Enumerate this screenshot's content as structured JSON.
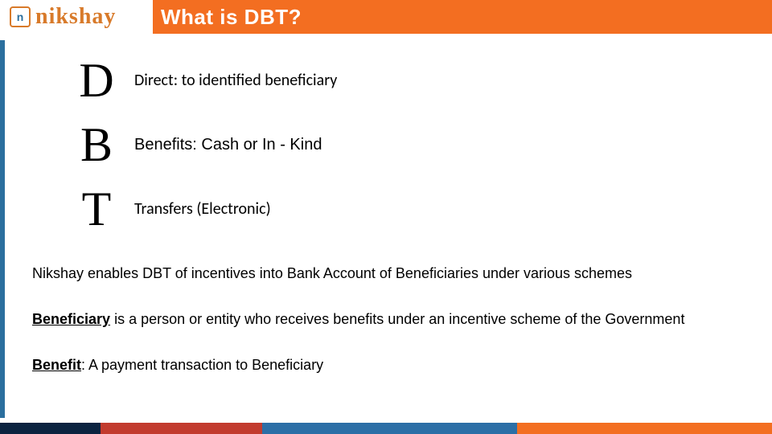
{
  "colors": {
    "header_bg": "#f36e21",
    "left_accent": "#2b6f9e",
    "logo_text": "#d87a2a",
    "text": "#000000"
  },
  "logo": {
    "icon_letter": "n",
    "text": "nikshay"
  },
  "header": {
    "title": "What is DBT?"
  },
  "acronym": [
    {
      "letter": "D",
      "desc": "Direct: to identified beneficiary"
    },
    {
      "letter": "B",
      "desc": "Benefits: Cash or In - Kind"
    },
    {
      "letter": "T",
      "desc": "Transfers (Electronic)"
    }
  ],
  "paragraphs": {
    "p1": "Nikshay enables DBT of incentives into Bank Account of Beneficiaries under various schemes",
    "p2_bold": "Beneficiary",
    "p2_rest": " is a person or entity who receives benefits under an incentive scheme of the Government",
    "p3_bold": "Benefit",
    "p3_rest": ": A payment transaction to Beneficiary"
  },
  "footer": {
    "segments": [
      {
        "color": "#0b2340",
        "width_pct": 13
      },
      {
        "color": "#c23b2e",
        "width_pct": 21
      },
      {
        "color": "#2c6ea6",
        "width_pct": 33
      },
      {
        "color": "#f36e21",
        "width_pct": 33
      }
    ]
  }
}
